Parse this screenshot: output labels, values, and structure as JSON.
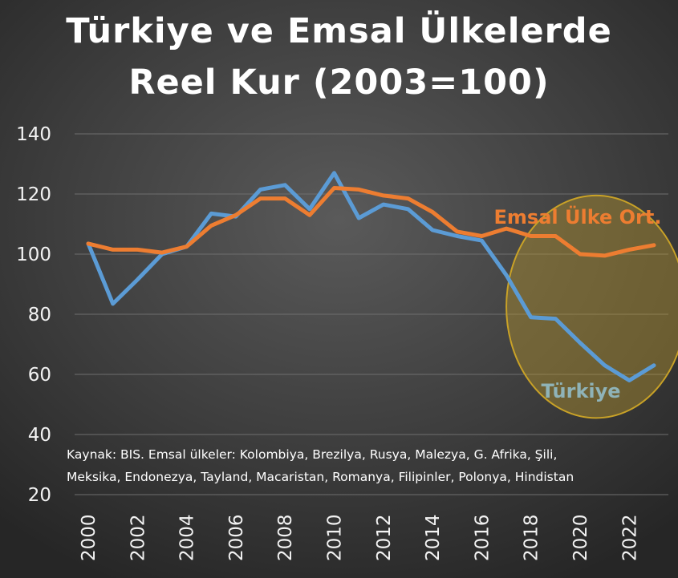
{
  "title_lines": [
    "Türkiye ve Emsal Ülkelerde",
    "Reel Kur (2003=100)"
  ],
  "source_note_lines": [
    "Kaynak: BIS. Emsal ülkeler: Kolombiya, Brezilya, Rusya, Malezya, G. Afrika, Şili,",
    "Meksika, Endonezya, Tayland, Macaristan, Romanya, Filipinler, Polonya, Hindistan"
  ],
  "chart_data": {
    "type": "line",
    "title": "Türkiye ve Emsal Ülkelerde Reel Kur (2003=100)",
    "x": [
      2000,
      2001,
      2002,
      2003,
      2004,
      2005,
      2006,
      2007,
      2008,
      2009,
      2010,
      2011,
      2012,
      2013,
      2014,
      2015,
      2016,
      2017,
      2018,
      2019,
      2020,
      2021,
      2022,
      2023
    ],
    "x_tick_labels": [
      "2000",
      "2002",
      "2004",
      "2006",
      "2008",
      "2010",
      "2012",
      "2014",
      "2016",
      "2018",
      "2020",
      "2022"
    ],
    "y_ticks": [
      20,
      40,
      60,
      80,
      100,
      120,
      140
    ],
    "ylim": [
      20,
      140
    ],
    "grid": true,
    "series": [
      {
        "name": "Türkiye",
        "color": "#5b9bd5",
        "label_color": "#8fb3b8",
        "values": [
          103.5,
          83.5,
          91.5,
          100,
          102.5,
          113.5,
          112.5,
          121.5,
          123,
          115,
          127,
          112,
          116.5,
          115,
          108,
          106,
          104.5,
          93,
          79,
          78.5,
          70.5,
          63,
          58,
          63
        ]
      },
      {
        "name": "Emsal Ülke Ort.",
        "color": "#ed7d31",
        "label_color": "#ed7d31",
        "values": [
          103.5,
          101.5,
          101.5,
          100.5,
          102.5,
          109.5,
          113,
          118.5,
          118.5,
          113,
          122,
          121.5,
          119.5,
          118.5,
          114,
          107.5,
          106,
          108.5,
          106,
          106,
          100,
          99.5,
          101.5,
          103
        ]
      }
    ],
    "annotation": {
      "shape": "ellipse",
      "fill": "#b8962e",
      "stroke": "#c9a227",
      "x_range": [
        2017.0,
        2024.3
      ],
      "y_range": [
        45.5,
        119.5
      ]
    }
  }
}
